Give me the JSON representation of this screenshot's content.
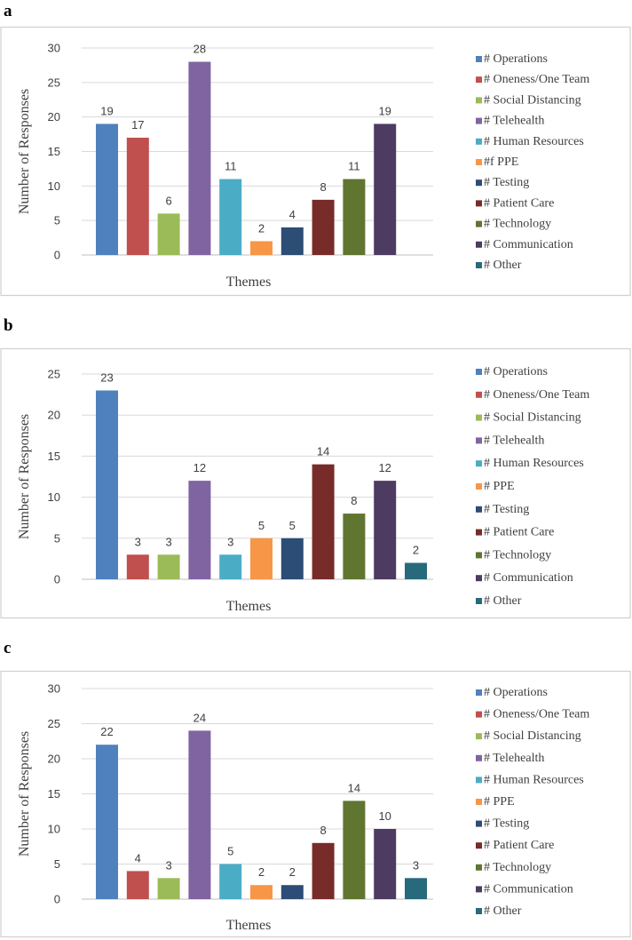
{
  "chart_data": [
    {
      "panel": "a",
      "type": "bar",
      "title": "",
      "xlabel": "Themes",
      "ylabel": "Number of Responses",
      "ylim": [
        0,
        30
      ],
      "yticks": [
        0,
        5,
        10,
        15,
        20,
        25,
        30
      ],
      "legend_position": "right",
      "series": [
        {
          "name": "# Operations",
          "value": 19,
          "color": "#4f81bd"
        },
        {
          "name": "# Oneness/One Team",
          "value": 17,
          "color": "#c0504d"
        },
        {
          "name": "# Social Distancing",
          "value": 6,
          "color": "#9bbb59"
        },
        {
          "name": "# Telehealth",
          "value": 28,
          "color": "#8064a2"
        },
        {
          "name": "# Human Resources",
          "value": 11,
          "color": "#4bacc6"
        },
        {
          "name": "#f PPE",
          "value": 2,
          "color": "#f79646"
        },
        {
          "name": "# Testing",
          "value": 4,
          "color": "#2c4d75"
        },
        {
          "name": "# Patient Care",
          "value": 8,
          "color": "#772c2a"
        },
        {
          "name": "# Technology",
          "value": 11,
          "color": "#5f7530"
        },
        {
          "name": "# Communication",
          "value": 19,
          "color": "#4d3b62"
        },
        {
          "name": "# Other",
          "value": null,
          "color": "#276a7c"
        }
      ]
    },
    {
      "panel": "b",
      "type": "bar",
      "title": "",
      "xlabel": "Themes",
      "ylabel": "Number of Responses",
      "ylim": [
        0,
        25
      ],
      "yticks": [
        0,
        5,
        10,
        15,
        20,
        25
      ],
      "legend_position": "right",
      "series": [
        {
          "name": "# Operations",
          "value": 23,
          "color": "#4f81bd"
        },
        {
          "name": "# Oneness/One Team",
          "value": 3,
          "color": "#c0504d"
        },
        {
          "name": "# Social Distancing",
          "value": 3,
          "color": "#9bbb59"
        },
        {
          "name": "# Telehealth",
          "value": 12,
          "color": "#8064a2"
        },
        {
          "name": "# Human Resources",
          "value": 3,
          "color": "#4bacc6"
        },
        {
          "name": "# PPE",
          "value": 5,
          "color": "#f79646"
        },
        {
          "name": "# Testing",
          "value": 5,
          "color": "#2c4d75"
        },
        {
          "name": "# Patient Care",
          "value": 14,
          "color": "#772c2a"
        },
        {
          "name": "# Technology",
          "value": 8,
          "color": "#5f7530"
        },
        {
          "name": "# Communication",
          "value": 12,
          "color": "#4d3b62"
        },
        {
          "name": "# Other",
          "value": 2,
          "color": "#276a7c"
        }
      ]
    },
    {
      "panel": "c",
      "type": "bar",
      "title": "",
      "xlabel": "Themes",
      "ylabel": "Number of Responses",
      "ylim": [
        0,
        30
      ],
      "yticks": [
        0,
        5,
        10,
        15,
        20,
        25,
        30
      ],
      "legend_position": "right",
      "series": [
        {
          "name": "# Operations",
          "value": 22,
          "color": "#4f81bd"
        },
        {
          "name": "# Oneness/One Team",
          "value": 4,
          "color": "#c0504d"
        },
        {
          "name": "# Social Distancing",
          "value": 3,
          "color": "#9bbb59"
        },
        {
          "name": "# Telehealth",
          "value": 24,
          "color": "#8064a2"
        },
        {
          "name": "# Human Resources",
          "value": 5,
          "color": "#4bacc6"
        },
        {
          "name": "# PPE",
          "value": 2,
          "color": "#f79646"
        },
        {
          "name": "# Testing",
          "value": 2,
          "color": "#2c4d75"
        },
        {
          "name": "# Patient Care",
          "value": 8,
          "color": "#772c2a"
        },
        {
          "name": "# Technology",
          "value": 14,
          "color": "#5f7530"
        },
        {
          "name": "# Communication",
          "value": 10,
          "color": "#4d3b62"
        },
        {
          "name": "# Other",
          "value": 3,
          "color": "#276a7c"
        }
      ]
    }
  ]
}
